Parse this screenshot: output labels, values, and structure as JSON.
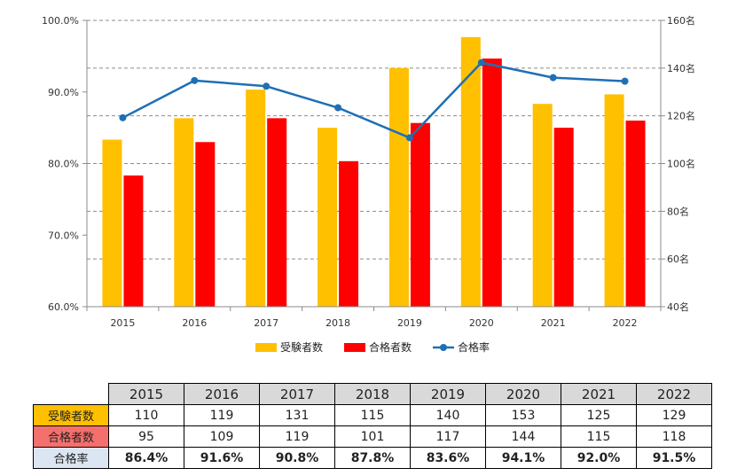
{
  "chart_data": {
    "type": "bar",
    "categories": [
      "2015",
      "2016",
      "2017",
      "2018",
      "2019",
      "2020",
      "2021",
      "2022"
    ],
    "series": [
      {
        "name": "受験者数",
        "kind": "bar",
        "axis": "right",
        "color": "#ffc000",
        "values": [
          110,
          119,
          131,
          115,
          140,
          153,
          125,
          129
        ]
      },
      {
        "name": "合格者数",
        "kind": "bar",
        "axis": "right",
        "color": "#ff0000",
        "values": [
          95,
          109,
          119,
          101,
          117,
          144,
          115,
          118
        ]
      },
      {
        "name": "合格率",
        "kind": "line",
        "axis": "left",
        "color": "#1f6fb5",
        "values": [
          86.4,
          91.6,
          90.8,
          87.8,
          83.6,
          94.1,
          92.0,
          91.5
        ]
      }
    ],
    "y_left": {
      "min": 60,
      "max": 100,
      "step": 10,
      "ticks": [
        "60.0%",
        "70.0%",
        "80.0%",
        "90.0%",
        "100.0%"
      ]
    },
    "y_right": {
      "min": 40,
      "max": 160,
      "step": 20,
      "ticks": [
        "40名",
        "60名",
        "80名",
        "100名",
        "120名",
        "140名",
        "160名"
      ]
    },
    "grid": "dashed",
    "legend": "bottom"
  },
  "table": {
    "years": [
      "2015",
      "2016",
      "2017",
      "2018",
      "2019",
      "2020",
      "2021",
      "2022"
    ],
    "rows": [
      {
        "label": "受験者数",
        "color": "#ffc000",
        "values": [
          "110",
          "119",
          "131",
          "115",
          "140",
          "153",
          "125",
          "129"
        ]
      },
      {
        "label": "合格者数",
        "color": "#f4706d",
        "values": [
          "95",
          "109",
          "119",
          "101",
          "117",
          "144",
          "115",
          "118"
        ]
      },
      {
        "label": "合格率",
        "color": "#dce6f2",
        "values": [
          "86.4%",
          "91.6%",
          "90.8%",
          "87.8%",
          "83.6%",
          "94.1%",
          "92.0%",
          "91.5%"
        ]
      }
    ]
  }
}
